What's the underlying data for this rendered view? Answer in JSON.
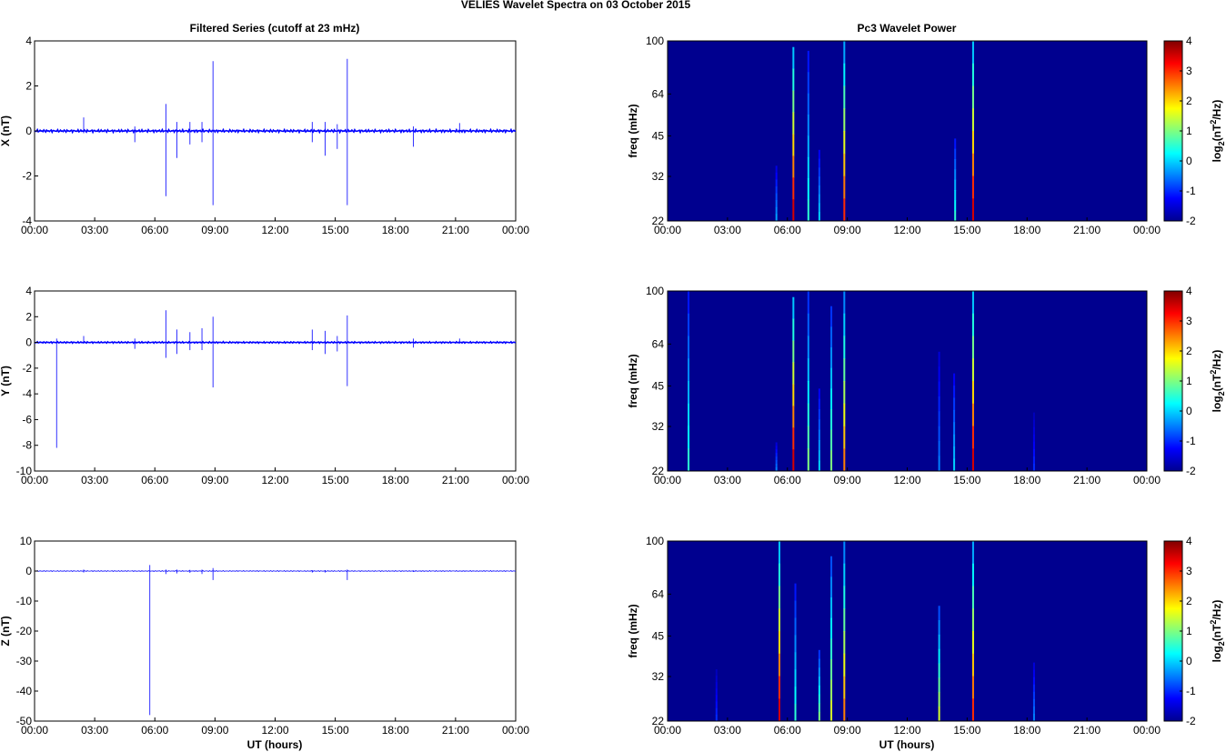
{
  "figure_title": "VELIES Wavelet Spectra on 03 October   2015",
  "left_title": "Filtered Series (cutoff at 23 mHz)",
  "right_title": "Pc3 Wavelet Power",
  "xlabel": "UT (hours)",
  "time_ticks": [
    "00:00",
    "03:00",
    "06:00",
    "09:00",
    "12:00",
    "15:00",
    "18:00",
    "21:00",
    "00:00"
  ],
  "freq_ticks": [
    "100",
    "64",
    "45",
    "32",
    "22"
  ],
  "freq_ylabel": "freq (mHz)",
  "colorbar": {
    "label_prefix": "log",
    "label_sub": "2",
    "label_mid": "(nT",
    "label_sup": "2",
    "label_suffix": "/Hz)",
    "ticks": [
      "4",
      "3",
      "2",
      "1",
      "0",
      "-1",
      "-2"
    ],
    "range": [
      -2,
      4
    ]
  },
  "colors": {
    "trace": "#0000ff",
    "background_power": "#00008f"
  },
  "chart_data": [
    {
      "type": "line",
      "title": "Filtered Series (cutoff at 23 mHz)",
      "ylabel": "X (nT)",
      "ylim": [
        -4,
        4
      ],
      "yticks": [
        "4",
        "2",
        "0",
        "-2",
        "-4"
      ],
      "xlim": [
        0,
        24
      ],
      "spikes": [
        {
          "t": 2.45,
          "min": -0.1,
          "max": 0.6
        },
        {
          "t": 5.0,
          "min": -0.5,
          "max": 0.2
        },
        {
          "t": 6.55,
          "min": -2.9,
          "max": 1.2
        },
        {
          "t": 7.1,
          "min": -1.2,
          "max": 0.4
        },
        {
          "t": 7.75,
          "min": -0.6,
          "max": 0.4
        },
        {
          "t": 8.35,
          "min": -0.5,
          "max": 0.4
        },
        {
          "t": 8.9,
          "min": -3.3,
          "max": 3.1
        },
        {
          "t": 13.85,
          "min": -0.5,
          "max": 0.4
        },
        {
          "t": 14.5,
          "min": -1.1,
          "max": 0.4
        },
        {
          "t": 15.1,
          "min": -0.8,
          "max": 0.3
        },
        {
          "t": 15.6,
          "min": -3.3,
          "max": 3.2
        },
        {
          "t": 18.9,
          "min": -0.7,
          "max": 0.2
        },
        {
          "t": 21.2,
          "min": -0.1,
          "max": 0.35
        }
      ]
    },
    {
      "type": "line",
      "ylabel": "Y (nT)",
      "ylim": [
        -10,
        4
      ],
      "yticks": [
        "4",
        "2",
        "0",
        "-2",
        "-4",
        "-6",
        "-8",
        "-10"
      ],
      "xlim": [
        0,
        24
      ],
      "spikes": [
        {
          "t": 1.1,
          "min": -8.2,
          "max": 0.3
        },
        {
          "t": 2.45,
          "min": -0.1,
          "max": 0.5
        },
        {
          "t": 5.0,
          "min": -0.5,
          "max": 0.3
        },
        {
          "t": 6.55,
          "min": -1.2,
          "max": 2.5
        },
        {
          "t": 7.1,
          "min": -0.9,
          "max": 1.0
        },
        {
          "t": 7.75,
          "min": -0.6,
          "max": 0.8
        },
        {
          "t": 8.35,
          "min": -0.6,
          "max": 1.1
        },
        {
          "t": 8.9,
          "min": -3.5,
          "max": 2.0
        },
        {
          "t": 13.85,
          "min": -0.6,
          "max": 1.0
        },
        {
          "t": 14.5,
          "min": -0.9,
          "max": 0.9
        },
        {
          "t": 15.1,
          "min": -0.7,
          "max": 0.5
        },
        {
          "t": 15.6,
          "min": -3.4,
          "max": 2.1
        },
        {
          "t": 18.9,
          "min": -0.4,
          "max": 0.3
        },
        {
          "t": 21.2,
          "min": -0.1,
          "max": 0.3
        }
      ]
    },
    {
      "type": "line",
      "ylabel": "Z (nT)",
      "ylim": [
        -50,
        10
      ],
      "yticks": [
        "10",
        "0",
        "-10",
        "-20",
        "-30",
        "-40",
        "-50"
      ],
      "xlim": [
        0,
        24
      ],
      "spikes": [
        {
          "t": 2.45,
          "min": -0.5,
          "max": 0.5
        },
        {
          "t": 5.75,
          "min": -48.0,
          "max": 2.0
        },
        {
          "t": 6.55,
          "min": -1.0,
          "max": 0.5
        },
        {
          "t": 7.1,
          "min": -0.8,
          "max": 0.5
        },
        {
          "t": 7.75,
          "min": -0.6,
          "max": 0.4
        },
        {
          "t": 8.35,
          "min": -1.0,
          "max": 0.5
        },
        {
          "t": 8.9,
          "min": -3.0,
          "max": 1.0
        },
        {
          "t": 13.85,
          "min": -0.5,
          "max": 0.3
        },
        {
          "t": 14.5,
          "min": -0.5,
          "max": 0.3
        },
        {
          "t": 15.6,
          "min": -3.0,
          "max": 0.5
        },
        {
          "t": 18.9,
          "min": -0.3,
          "max": 0.2
        }
      ]
    },
    {
      "type": "heatmap",
      "title": "Pc3 Wavelet Power",
      "ylabel": "freq (mHz)",
      "ylim": [
        22,
        100
      ],
      "bursts": [
        {
          "t": 5.45,
          "f_top": 35,
          "p": -0.3
        },
        {
          "t": 6.3,
          "f_top": 95,
          "p": 3.5
        },
        {
          "t": 7.05,
          "f_top": 92,
          "p": 0.5
        },
        {
          "t": 7.6,
          "f_top": 40,
          "p": 0.0
        },
        {
          "t": 8.85,
          "f_top": 100,
          "p": 3.0
        },
        {
          "t": 14.4,
          "f_top": 44,
          "p": 0.5
        },
        {
          "t": 15.3,
          "f_top": 100,
          "p": 3.5
        }
      ]
    },
    {
      "type": "heatmap",
      "ylabel": "freq (mHz)",
      "ylim": [
        22,
        100
      ],
      "bursts": [
        {
          "t": 1.05,
          "f_top": 100,
          "p": 0.5
        },
        {
          "t": 5.45,
          "f_top": 28,
          "p": -0.5
        },
        {
          "t": 6.3,
          "f_top": 95,
          "p": 3.5
        },
        {
          "t": 7.05,
          "f_top": 100,
          "p": 1.0
        },
        {
          "t": 7.6,
          "f_top": 44,
          "p": 0.0
        },
        {
          "t": 8.2,
          "f_top": 88,
          "p": 1.0
        },
        {
          "t": 8.85,
          "f_top": 100,
          "p": 2.5
        },
        {
          "t": 13.6,
          "f_top": 60,
          "p": -0.5
        },
        {
          "t": 14.35,
          "f_top": 50,
          "p": 0.0
        },
        {
          "t": 15.3,
          "f_top": 100,
          "p": 3.5
        },
        {
          "t": 18.35,
          "f_top": 36,
          "p": -1.0
        }
      ]
    },
    {
      "type": "heatmap",
      "ylabel": "freq (mHz)",
      "ylim": [
        22,
        100
      ],
      "bursts": [
        {
          "t": 2.45,
          "f_top": 34,
          "p": -1.0
        },
        {
          "t": 5.6,
          "f_top": 100,
          "p": 3.5
        },
        {
          "t": 6.4,
          "f_top": 70,
          "p": 0.5
        },
        {
          "t": 7.6,
          "f_top": 40,
          "p": 1.0
        },
        {
          "t": 8.2,
          "f_top": 88,
          "p": 1.5
        },
        {
          "t": 8.85,
          "f_top": 100,
          "p": 2.5
        },
        {
          "t": 13.6,
          "f_top": 58,
          "p": 1.5
        },
        {
          "t": 15.3,
          "f_top": 100,
          "p": 3.0
        },
        {
          "t": 18.35,
          "f_top": 36,
          "p": -0.5
        }
      ]
    }
  ]
}
